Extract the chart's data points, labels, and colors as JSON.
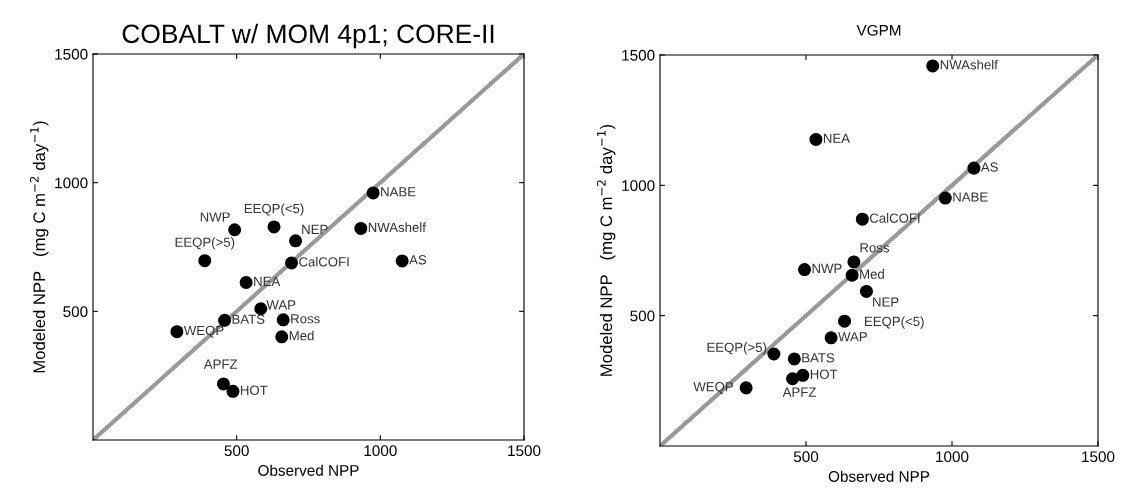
{
  "chart_data": [
    {
      "type": "scatter",
      "title": "COBALT w/ MOM 4p1; CORE-II",
      "xlabel": "Observed NPP",
      "ylabel": "Modeled NPP   (mg C m$^{−2}$ day$^{−1}$)",
      "xlim": [
        0,
        1500
      ],
      "ylim": [
        0,
        1500
      ],
      "xticks": [
        500,
        1000,
        1500
      ],
      "yticks": [
        500,
        1000,
        1500
      ],
      "grid": false,
      "marker": "circle",
      "series": [
        {
          "type": "line",
          "color": "#999999",
          "x": [
            0,
            1500
          ],
          "values": [
            0,
            1500
          ],
          "marker": "none"
        },
        {
          "color": "#000000",
          "x": [
            975,
            493,
            630,
            705,
            932,
            389,
            691,
            1076,
            533,
            584,
            458,
            662,
            292,
            657,
            454,
            487
          ],
          "values": [
            960,
            817,
            828,
            774,
            822,
            697,
            688,
            696,
            612,
            510,
            465,
            467,
            421,
            401,
            218,
            189
          ]
        }
      ],
      "annotations": [
        {
          "text": "NABE",
          "x": 975,
          "y": 960
        },
        {
          "text": "NWP",
          "x": 493,
          "y": 817
        },
        {
          "text": "EEQP(<5)",
          "x": 630,
          "y": 828
        },
        {
          "text": "NEP",
          "x": 705,
          "y": 774
        },
        {
          "text": "NWAshelf",
          "x": 932,
          "y": 822
        },
        {
          "text": "EEQP(>5)",
          "x": 389,
          "y": 697
        },
        {
          "text": "CalCOFI",
          "x": 691,
          "y": 688
        },
        {
          "text": "AS",
          "x": 1076,
          "y": 696
        },
        {
          "text": "NEA",
          "x": 533,
          "y": 612
        },
        {
          "text": "WAP",
          "x": 584,
          "y": 510
        },
        {
          "text": "BATS",
          "x": 458,
          "y": 465
        },
        {
          "text": "Ross",
          "x": 662,
          "y": 467
        },
        {
          "text": "WEQP",
          "x": 292,
          "y": 421
        },
        {
          "text": "Med",
          "x": 657,
          "y": 401
        },
        {
          "text": "APFZ",
          "x": 454,
          "y": 218
        },
        {
          "text": "HOT",
          "x": 487,
          "y": 189
        }
      ]
    },
    {
      "type": "scatter",
      "title": "VGPM",
      "xlabel": "Observed NPP",
      "ylabel": "Modeled NPP   (mg C m$^{−2}$ day$^{−1}$)",
      "xlim": [
        0,
        1500
      ],
      "ylim": [
        0,
        1500
      ],
      "xticks": [
        500,
        1000,
        1500
      ],
      "yticks": [
        500,
        1000,
        1500
      ],
      "grid": false,
      "marker": "circle",
      "series": [
        {
          "type": "line",
          "color": "#999999",
          "x": [
            0,
            1500
          ],
          "values": [
            0,
            1500
          ],
          "marker": "none"
        },
        {
          "color": "#000000",
          "x": [
            934,
            534,
            1075,
            977,
            693,
            664,
            495,
            658,
            707,
            632,
            586,
            390,
            460,
            489,
            454,
            295
          ],
          "values": [
            1458,
            1176,
            1066,
            951,
            870,
            706,
            677,
            655,
            593,
            479,
            415,
            353,
            334,
            271,
            258,
            223
          ]
        }
      ],
      "annotations": [
        {
          "text": "NWAshelf",
          "x": 934,
          "y": 1458
        },
        {
          "text": "NEA",
          "x": 534,
          "y": 1176
        },
        {
          "text": "AS",
          "x": 1075,
          "y": 1066
        },
        {
          "text": "NABE",
          "x": 977,
          "y": 951
        },
        {
          "text": "CalCOFI",
          "x": 693,
          "y": 870
        },
        {
          "text": "Ross",
          "x": 664,
          "y": 706
        },
        {
          "text": "NWP",
          "x": 495,
          "y": 677
        },
        {
          "text": "Med",
          "x": 658,
          "y": 655
        },
        {
          "text": "NEP",
          "x": 707,
          "y": 593
        },
        {
          "text": "EEQP(<5)",
          "x": 632,
          "y": 479
        },
        {
          "text": "WAP",
          "x": 586,
          "y": 415
        },
        {
          "text": "EEQP(>5)",
          "x": 390,
          "y": 353
        },
        {
          "text": "BATS",
          "x": 460,
          "y": 334
        },
        {
          "text": "HOT",
          "x": 489,
          "y": 271
        },
        {
          "text": "APFZ",
          "x": 454,
          "y": 258
        },
        {
          "text": "WEQP",
          "x": 295,
          "y": 223
        }
      ]
    }
  ]
}
